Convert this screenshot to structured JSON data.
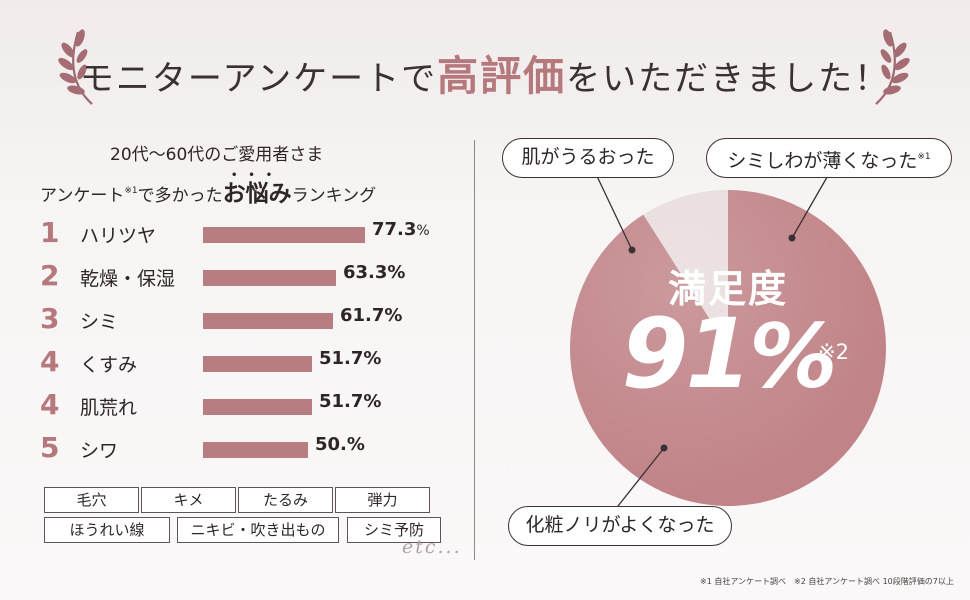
{
  "header": {
    "title_before": "モニターアンケートで",
    "title_accent": "高評価",
    "title_after": "をいただきました！"
  },
  "left": {
    "subtitle_line1": "20代〜60代のご愛用者さま",
    "subtitle_line2_a": "アンケート",
    "subtitle_line2_sup": "※1",
    "subtitle_line2_b": "で多かった",
    "subtitle_line2_em": "お悩み",
    "subtitle_line2_c": "ランキング",
    "rankings": [
      {
        "rank": "1",
        "label": "ハリツヤ",
        "value": 77.3,
        "pct_main": "77.3",
        "pct_unit": "%"
      },
      {
        "rank": "2",
        "label": "乾燥・保湿",
        "value": 63.3,
        "pct_main": "63.3%",
        "pct_unit": ""
      },
      {
        "rank": "3",
        "label": "シミ",
        "value": 61.7,
        "pct_main": "61.7%",
        "pct_unit": ""
      },
      {
        "rank": "4",
        "label": "くすみ",
        "value": 51.7,
        "pct_main": "51.7%",
        "pct_unit": ""
      },
      {
        "rank": "4",
        "label": "肌荒れ",
        "value": 51.7,
        "pct_main": "51.7%",
        "pct_unit": ""
      },
      {
        "rank": "5",
        "label": "シワ",
        "value": 50.0,
        "pct_main": "50.%",
        "pct_unit": ""
      }
    ],
    "tags_row1": [
      "毛穴",
      "キメ",
      "たるみ",
      "弾力"
    ],
    "tags_row2": [
      "ほうれい線",
      "ニキビ・吹き出もの",
      "シミ予防"
    ],
    "etc": "etc..."
  },
  "right": {
    "callouts": {
      "top_left": "肌がうるおった",
      "top_right": "シミしわが薄くなった",
      "top_right_sup": "※1",
      "bottom": "化粧ノリがよくなった"
    },
    "caption": "満足度",
    "value": "91",
    "unit": "%",
    "note": "※2",
    "satisfaction_fraction": 0.91
  },
  "colors": {
    "accent": "#b5787d",
    "bar": "#b77d80",
    "pie_main": "#c08387",
    "pie_rest": "#e8dcdc"
  },
  "footnote": "※1 自社アンケート調べ　※2 自社アンケート調べ 10段階評価の7以上"
}
